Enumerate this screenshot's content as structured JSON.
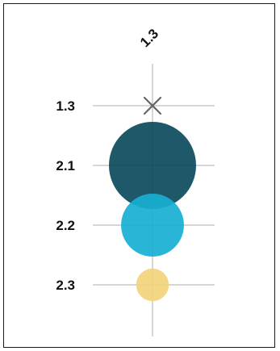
{
  "chart_data": {
    "type": "bubble-matrix",
    "columns": [
      "1.3"
    ],
    "rows": [
      "1.3",
      "2.1",
      "2.2",
      "2.3"
    ],
    "cells": [
      {
        "row": "1.3",
        "column": "1.3",
        "value": null,
        "marker": "x"
      },
      {
        "row": "2.1",
        "column": "1.3",
        "value": 1.0
      },
      {
        "row": "2.2",
        "column": "1.3",
        "value": 0.52
      },
      {
        "row": "2.3",
        "column": "1.3",
        "value": 0.14
      }
    ],
    "colors": {
      "2.1": "#0b4a5c",
      "2.2": "#17afd2",
      "2.3": "#f2d47a",
      "marker": "#666666",
      "grid": "#c8c8c8"
    },
    "grid": true
  }
}
